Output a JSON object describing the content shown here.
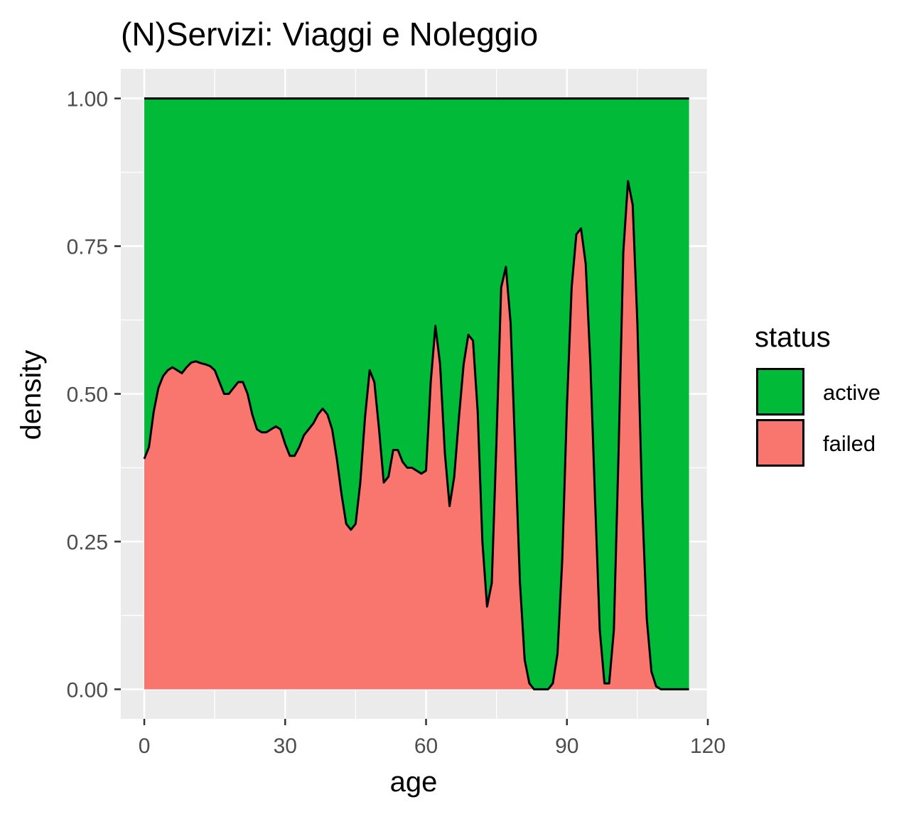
{
  "chart_data": {
    "type": "area",
    "title": "(N)Servizi: Viaggi e Noleggio",
    "xlabel": "age",
    "ylabel": "density",
    "xlim": [
      -5,
      120
    ],
    "ylim": [
      -0.05,
      1.05
    ],
    "x_ticks": [
      0,
      30,
      60,
      90,
      120
    ],
    "y_ticks": [
      0.0,
      0.25,
      0.5,
      0.75,
      1.0
    ],
    "x_tick_labels": [
      "0",
      "30",
      "60",
      "90",
      "120"
    ],
    "y_tick_labels": [
      "0.00",
      "0.25",
      "0.50",
      "0.75",
      "1.00"
    ],
    "grid": true,
    "stacked": "fill",
    "legend": {
      "title": "status",
      "position": "right"
    },
    "series": [
      {
        "name": "active",
        "color": "#00BA38"
      },
      {
        "name": "failed",
        "color": "#F8766D"
      }
    ],
    "failed_share": {
      "x": [
        0,
        1,
        2,
        3,
        4,
        5,
        6,
        7,
        8,
        9,
        10,
        11,
        12,
        13,
        14,
        15,
        16,
        17,
        18,
        19,
        20,
        21,
        22,
        23,
        24,
        25,
        26,
        27,
        28,
        29,
        30,
        31,
        32,
        33,
        34,
        35,
        36,
        37,
        38,
        39,
        40,
        41,
        42,
        43,
        44,
        45,
        46,
        47,
        48,
        49,
        50,
        51,
        52,
        53,
        54,
        55,
        56,
        57,
        58,
        59,
        60,
        61,
        62,
        63,
        64,
        65,
        66,
        67,
        68,
        69,
        70,
        71,
        72,
        73,
        74,
        75,
        76,
        77,
        78,
        79,
        80,
        81,
        82,
        83,
        84,
        85,
        86,
        87,
        88,
        89,
        90,
        91,
        92,
        93,
        94,
        95,
        96,
        97,
        98,
        99,
        100,
        101,
        102,
        103,
        104,
        105,
        106,
        107,
        108,
        109,
        110,
        112,
        114,
        116
      ],
      "y": [
        0.39,
        0.41,
        0.47,
        0.51,
        0.53,
        0.54,
        0.545,
        0.54,
        0.535,
        0.545,
        0.553,
        0.555,
        0.552,
        0.55,
        0.547,
        0.54,
        0.52,
        0.5,
        0.5,
        0.51,
        0.52,
        0.52,
        0.5,
        0.465,
        0.44,
        0.435,
        0.435,
        0.44,
        0.445,
        0.44,
        0.415,
        0.395,
        0.395,
        0.41,
        0.43,
        0.44,
        0.45,
        0.465,
        0.475,
        0.465,
        0.44,
        0.39,
        0.33,
        0.28,
        0.27,
        0.28,
        0.35,
        0.46,
        0.54,
        0.52,
        0.44,
        0.35,
        0.36,
        0.405,
        0.405,
        0.385,
        0.375,
        0.375,
        0.37,
        0.365,
        0.37,
        0.52,
        0.615,
        0.55,
        0.4,
        0.31,
        0.36,
        0.46,
        0.55,
        0.6,
        0.59,
        0.47,
        0.25,
        0.14,
        0.18,
        0.42,
        0.68,
        0.715,
        0.62,
        0.4,
        0.18,
        0.05,
        0.01,
        0.0,
        0.0,
        0.0,
        0.0,
        0.01,
        0.06,
        0.22,
        0.48,
        0.68,
        0.77,
        0.78,
        0.72,
        0.55,
        0.32,
        0.1,
        0.01,
        0.01,
        0.1,
        0.4,
        0.74,
        0.86,
        0.82,
        0.62,
        0.32,
        0.12,
        0.03,
        0.005,
        0.0,
        0.0,
        0.0,
        0.0
      ]
    }
  }
}
